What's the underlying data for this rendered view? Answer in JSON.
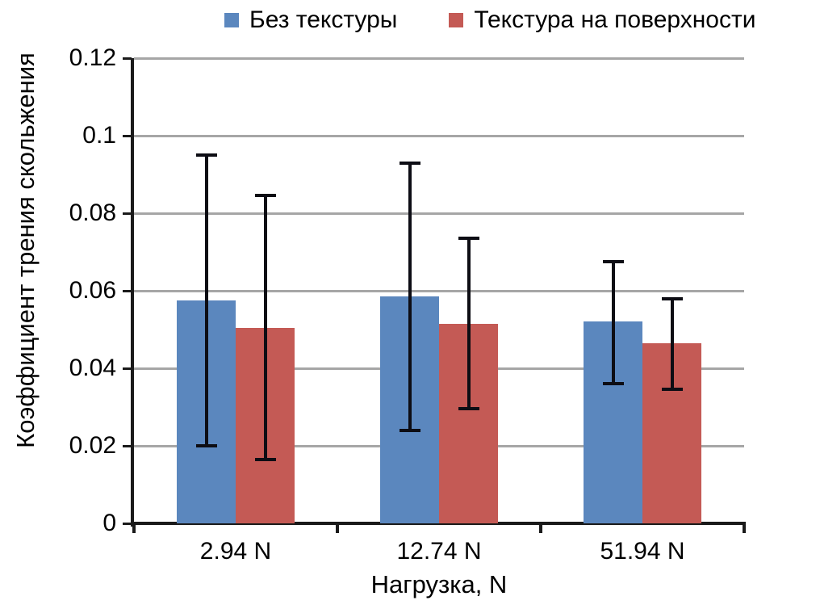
{
  "chart_data": {
    "type": "bar",
    "title": "",
    "categories": [
      "2.94 N",
      "12.74 N",
      "51.94 N"
    ],
    "series": [
      {
        "name": "Без текстуры",
        "color": "#5b87be",
        "values": [
          0.0575,
          0.0585,
          0.052
        ],
        "error_high": [
          0.095,
          0.093,
          0.0675
        ],
        "error_low": [
          0.02,
          0.024,
          0.036
        ]
      },
      {
        "name": "Текстура на поверхности",
        "color": "#c45a55",
        "values": [
          0.0505,
          0.0515,
          0.0465
        ],
        "error_high": [
          0.0845,
          0.0735,
          0.058
        ],
        "error_low": [
          0.0165,
          0.0295,
          0.0345
        ]
      }
    ],
    "xlabel": "Нагрузка, N",
    "ylabel": "Коэффициент трения скольжения",
    "ylim": [
      0,
      0.12
    ],
    "yticks": [
      0,
      0.02,
      0.04,
      0.06,
      0.08,
      0.1,
      0.12
    ],
    "ytick_labels": [
      "0",
      "0.02",
      "0.04",
      "0.06",
      "0.08",
      "0.1",
      "0.12"
    ],
    "grid": true,
    "legend_position": "top",
    "gridline_color": "#a6a6a6",
    "axis_color": "#1a1a1a",
    "errorbar_color": "#0d0d14"
  }
}
